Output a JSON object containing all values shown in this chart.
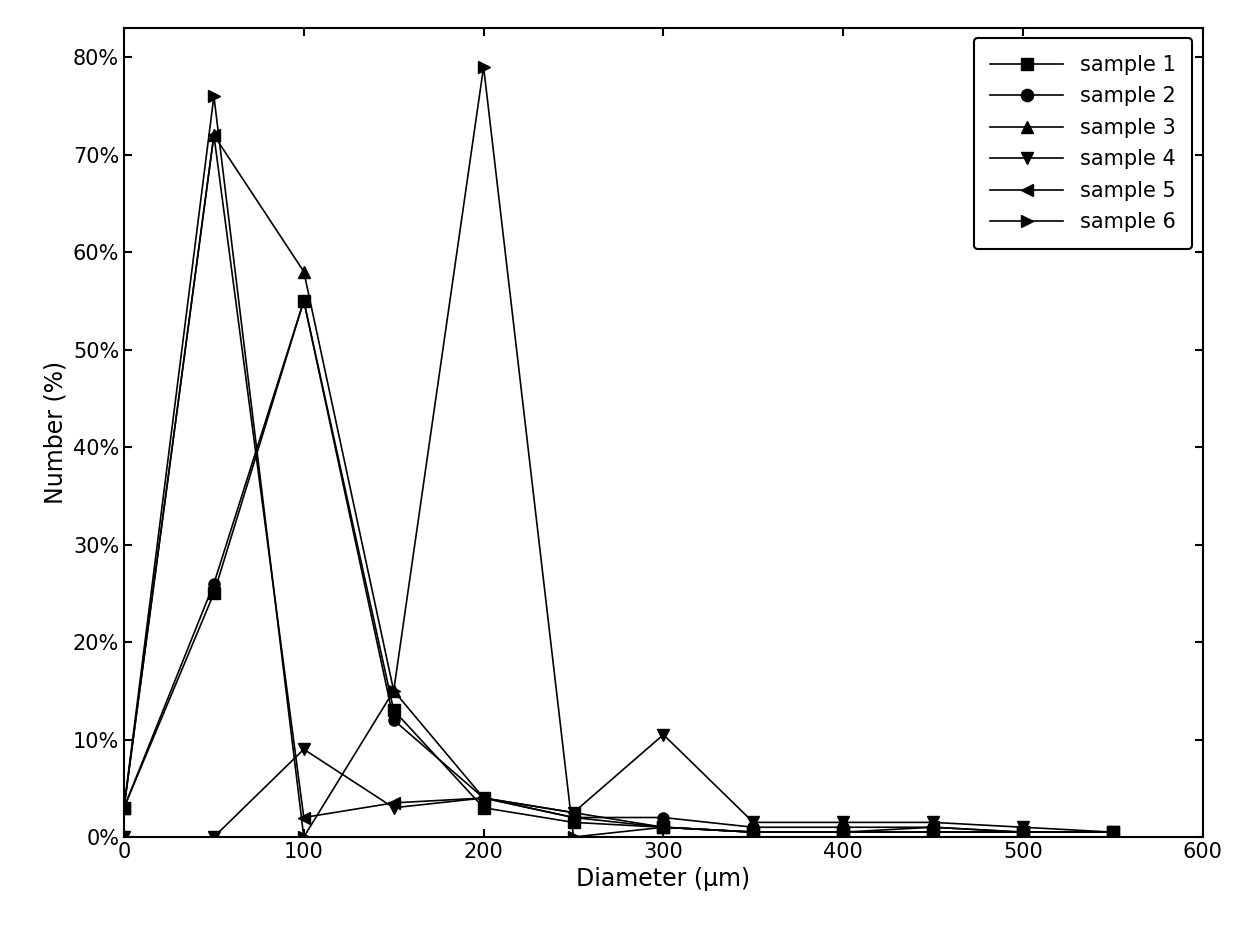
{
  "series": [
    {
      "label": "sample 1",
      "x": [
        0,
        50,
        100,
        150,
        200,
        250,
        300,
        350,
        400,
        450,
        500,
        550
      ],
      "y": [
        0.03,
        0.25,
        0.55,
        0.13,
        0.03,
        0.015,
        0.01,
        0.005,
        0.005,
        0.005,
        0.005,
        0.005
      ],
      "marker": "s",
      "linestyle": "-"
    },
    {
      "label": "sample 2",
      "x": [
        0,
        50,
        100,
        150,
        200,
        250,
        300,
        350,
        400,
        450,
        500,
        550
      ],
      "y": [
        0.03,
        0.26,
        0.55,
        0.12,
        0.04,
        0.02,
        0.02,
        0.01,
        0.01,
        0.01,
        0.005,
        0.005
      ],
      "marker": "o",
      "linestyle": "-"
    },
    {
      "label": "sample 3",
      "x": [
        0,
        50,
        100,
        150,
        200,
        250,
        300,
        350,
        400,
        450,
        500,
        550
      ],
      "y": [
        0.03,
        0.72,
        0.58,
        0.15,
        0.04,
        0.02,
        0.01,
        0.005,
        0.005,
        0.005,
        0.005,
        0.005
      ],
      "marker": "^",
      "linestyle": "-"
    },
    {
      "label": "sample 4",
      "x": [
        0,
        50,
        100,
        150,
        200,
        250,
        300,
        350,
        400,
        450,
        500,
        550
      ],
      "y": [
        0.0,
        0.0,
        0.09,
        0.03,
        0.04,
        0.025,
        0.105,
        0.015,
        0.015,
        0.015,
        0.01,
        0.005
      ],
      "marker": "v",
      "linestyle": "-"
    },
    {
      "label": "sample 5",
      "x": [
        0,
        50,
        100,
        150,
        200,
        250,
        300,
        350,
        400,
        450,
        500,
        550
      ],
      "y": [
        0.03,
        0.72,
        0.02,
        0.035,
        0.04,
        0.025,
        0.01,
        0.005,
        0.005,
        0.01,
        0.005,
        0.005
      ],
      "marker": "<",
      "linestyle": "-"
    },
    {
      "label": "sample 6",
      "x": [
        0,
        50,
        100,
        150,
        200,
        250,
        300,
        350,
        400,
        450,
        500,
        550
      ],
      "y": [
        0.03,
        0.76,
        0.0,
        0.15,
        0.79,
        0.0,
        0.01,
        0.005,
        0.005,
        0.005,
        0.005,
        0.005
      ],
      "marker": ">",
      "linestyle": "-"
    }
  ],
  "xlabel": "Diameter (μm)",
  "ylabel": "Number (%)",
  "xlim": [
    0,
    600
  ],
  "ylim": [
    0.0,
    0.83
  ],
  "yticks": [
    0.0,
    0.1,
    0.2,
    0.3,
    0.4,
    0.5,
    0.6,
    0.7,
    0.8
  ],
  "ytick_labels": [
    "0%",
    "10%",
    "20%",
    "30%",
    "40%",
    "50%",
    "60%",
    "70%",
    "80%"
  ],
  "xticks": [
    0,
    100,
    200,
    300,
    400,
    500,
    600
  ],
  "xtick_labels": [
    "0",
    "100",
    "200",
    "300",
    "400",
    "500",
    "600"
  ],
  "background_color": "#ffffff",
  "markersize": 8,
  "linewidth": 1.2,
  "legend_fontsize": 15,
  "axis_label_fontsize": 17,
  "tick_fontsize": 15
}
